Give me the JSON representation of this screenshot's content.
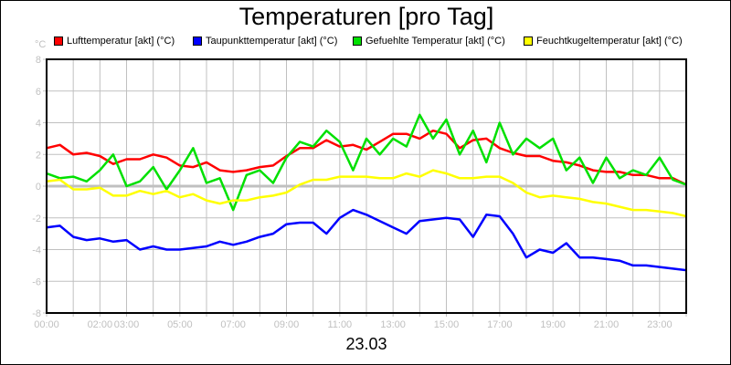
{
  "chart_data": {
    "type": "line",
    "title": "Temperaturen [pro Tag]",
    "ylabel": "°C",
    "xlabel": "23.03",
    "ylim": [
      -8,
      8
    ],
    "xlim": [
      0,
      24
    ],
    "yticks": [
      "8",
      "6",
      "4",
      "2",
      "0",
      "-2",
      "-4",
      "-6",
      "-8"
    ],
    "ytick_values": [
      8,
      6,
      4,
      2,
      0,
      -2,
      -4,
      -6,
      -8
    ],
    "xticks": [
      "00:00",
      "02:00",
      "03:00",
      "05:00",
      "07:00",
      "09:00",
      "11:00",
      "13:00",
      "15:00",
      "17:00",
      "19:00",
      "21:00",
      "23:00"
    ],
    "xtick_hours": [
      0,
      2,
      3,
      5,
      7,
      9,
      11,
      13,
      15,
      17,
      19,
      21,
      23
    ],
    "grid": true,
    "legend_position": "top",
    "x": [
      0,
      0.5,
      1,
      1.5,
      2,
      2.5,
      3,
      3.5,
      4,
      4.5,
      5,
      5.5,
      6,
      6.5,
      7,
      7.5,
      8,
      8.5,
      9,
      9.5,
      10,
      10.5,
      11,
      11.5,
      12,
      12.5,
      13,
      13.5,
      14,
      14.5,
      15,
      15.5,
      16,
      16.5,
      17,
      17.5,
      18,
      18.5,
      19,
      19.5,
      20,
      20.5,
      21,
      21.5,
      22,
      22.5,
      23,
      23.5,
      24
    ],
    "series": [
      {
        "name": "Lufttemperatur [akt] (°C)",
        "color": "#ff0000",
        "values": [
          2.4,
          2.6,
          2.0,
          2.1,
          1.9,
          1.4,
          1.7,
          1.7,
          2.0,
          1.8,
          1.3,
          1.2,
          1.5,
          1.0,
          0.9,
          1.0,
          1.2,
          1.3,
          1.9,
          2.4,
          2.4,
          2.9,
          2.5,
          2.6,
          2.3,
          2.8,
          3.3,
          3.3,
          3.0,
          3.5,
          3.3,
          2.4,
          2.9,
          3.0,
          2.4,
          2.1,
          1.9,
          1.9,
          1.6,
          1.5,
          1.3,
          1.0,
          0.9,
          0.9,
          0.7,
          0.7,
          0.5,
          0.5,
          0.1
        ]
      },
      {
        "name": "Taupunkttemperatur [akt] (°C)",
        "color": "#0000ff",
        "values": [
          -2.6,
          -2.5,
          -3.2,
          -3.4,
          -3.3,
          -3.5,
          -3.4,
          -4.0,
          -3.8,
          -4.0,
          -4.0,
          -3.9,
          -3.8,
          -3.5,
          -3.7,
          -3.5,
          -3.2,
          -3.0,
          -2.4,
          -2.3,
          -2.3,
          -3.0,
          -2.0,
          -1.5,
          -1.8,
          -2.2,
          -2.6,
          -3.0,
          -2.2,
          -2.1,
          -2.0,
          -2.1,
          -3.2,
          -1.8,
          -1.9,
          -3.0,
          -4.5,
          -4.0,
          -4.2,
          -3.6,
          -4.5,
          -4.5,
          -4.6,
          -4.7,
          -5.0,
          -5.0,
          -5.1,
          -5.2,
          -5.3
        ]
      },
      {
        "name": "Gefuehlte Temperatur [akt] (°C)",
        "color": "#00e000",
        "values": [
          0.8,
          0.5,
          0.6,
          0.3,
          1.0,
          2.0,
          0.0,
          0.3,
          1.2,
          -0.2,
          1.0,
          2.4,
          0.2,
          0.5,
          -1.5,
          0.7,
          1.0,
          0.2,
          1.8,
          2.8,
          2.5,
          3.5,
          2.8,
          1.0,
          3.0,
          2.0,
          3.0,
          2.5,
          4.5,
          3.0,
          4.2,
          2.0,
          3.5,
          1.5,
          4.0,
          2.0,
          3.0,
          2.4,
          3.0,
          1.0,
          1.8,
          0.2,
          1.8,
          0.5,
          1.0,
          0.7,
          1.8,
          0.4,
          0.1
        ]
      },
      {
        "name": "Feuchtkugeltemperatur [akt] (°C)",
        "color": "#ffff00",
        "values": [
          0.3,
          0.4,
          -0.2,
          -0.2,
          -0.1,
          -0.6,
          -0.6,
          -0.3,
          -0.5,
          -0.3,
          -0.7,
          -0.5,
          -0.9,
          -1.1,
          -0.9,
          -0.9,
          -0.7,
          -0.6,
          -0.4,
          0.1,
          0.4,
          0.4,
          0.6,
          0.6,
          0.6,
          0.5,
          0.5,
          0.8,
          0.6,
          1.0,
          0.8,
          0.5,
          0.5,
          0.6,
          0.6,
          0.2,
          -0.4,
          -0.7,
          -0.6,
          -0.7,
          -0.8,
          -1.0,
          -1.1,
          -1.3,
          -1.5,
          -1.5,
          -1.6,
          -1.7,
          -1.9
        ]
      }
    ]
  }
}
